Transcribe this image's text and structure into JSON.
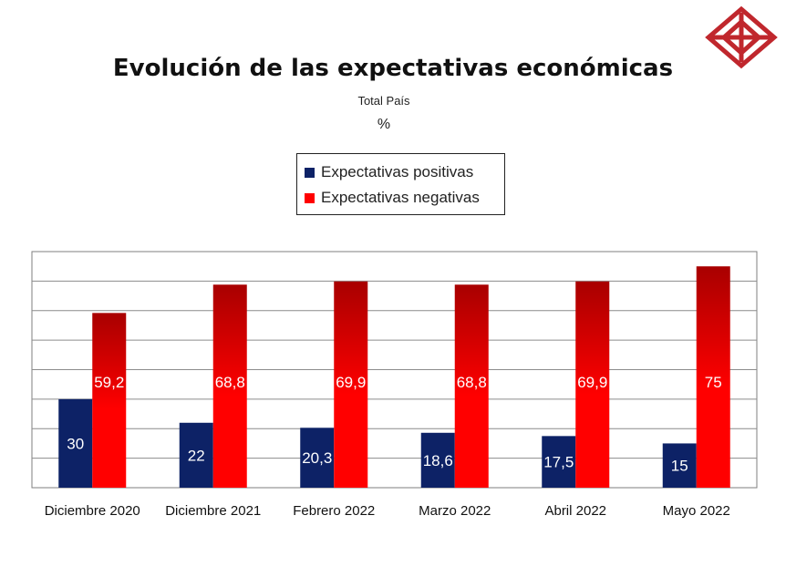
{
  "header": {
    "title": "Evolución de las expectativas económicas",
    "subtitle": "Total País",
    "unit": "%"
  },
  "colors": {
    "positive": "#0d2266",
    "negative_top": "#a80000",
    "negative_bottom": "#ff0000"
  },
  "chart_data": {
    "type": "bar",
    "categories": [
      "Diciembre 2020",
      "Diciembre 2021",
      "Febrero 2022",
      "Marzo 2022",
      "Abril 2022",
      "Mayo 2022"
    ],
    "series": [
      {
        "name": "Expectativas positivas",
        "values": [
          30,
          22,
          20.3,
          18.6,
          17.5,
          15
        ],
        "labels": [
          "30",
          "22",
          "20,3",
          "18,6",
          "17,5",
          "15"
        ]
      },
      {
        "name": "Expectativas negativas",
        "values": [
          59.2,
          68.8,
          69.9,
          68.8,
          69.9,
          75
        ],
        "labels": [
          "59,2",
          "68,8",
          "69,9",
          "68,8",
          "69,9",
          "75"
        ]
      }
    ],
    "ylim": [
      0,
      80
    ],
    "grid": true,
    "legend_position": "top-center"
  }
}
